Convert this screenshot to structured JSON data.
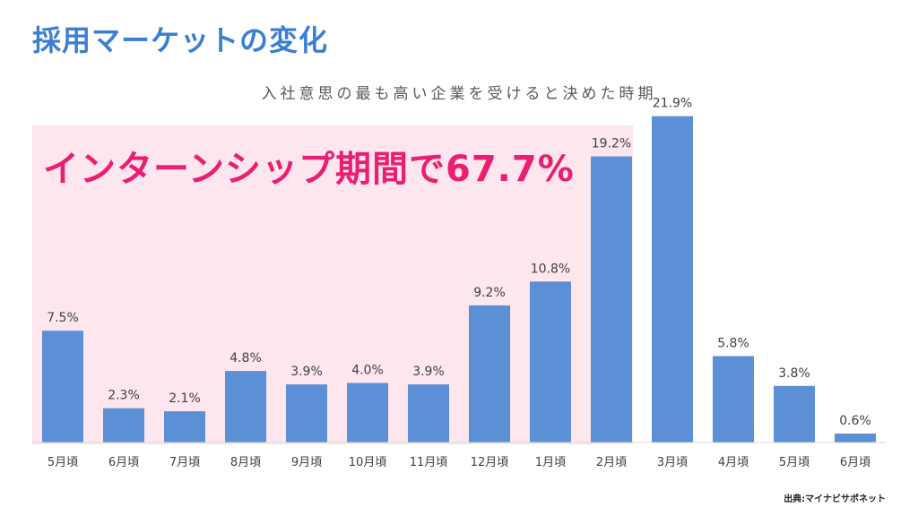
{
  "slide": {
    "title": "採用マーケットの変化",
    "highlight_label": "インターンシップ期間で67.7%",
    "source": "出典:マイナビサポネット"
  },
  "colors": {
    "title": "#3b7fd2",
    "bar": "#5b8fd6",
    "highlight_background": "#fde6ee",
    "highlight_text": "#ea1f73"
  },
  "chart_data": {
    "type": "bar",
    "title": "入社意思の最も高い企業を受けると決めた時期",
    "categories": [
      "5月頃",
      "6月頃",
      "7月頃",
      "8月頃",
      "9月頃",
      "10月頃",
      "11月頃",
      "12月頃",
      "1月頃",
      "2月頃",
      "3月頃",
      "4月頃",
      "5月頃",
      "6月頃"
    ],
    "values": [
      7.5,
      2.3,
      2.1,
      4.8,
      3.9,
      4.0,
      3.9,
      9.2,
      10.8,
      19.2,
      21.9,
      5.8,
      3.8,
      0.6
    ],
    "value_labels": [
      "7.5%",
      "2.3%",
      "2.1%",
      "4.8%",
      "3.9%",
      "4.0%",
      "3.9%",
      "9.2%",
      "10.8%",
      "19.2%",
      "21.9%",
      "5.8%",
      "3.8%",
      "0.6%"
    ],
    "unit": "%",
    "highlighted_categories_range": [
      0,
      9
    ],
    "xlabel": "",
    "ylabel": "",
    "ylim": [
      0,
      22
    ],
    "grid": false,
    "legend": "none"
  }
}
